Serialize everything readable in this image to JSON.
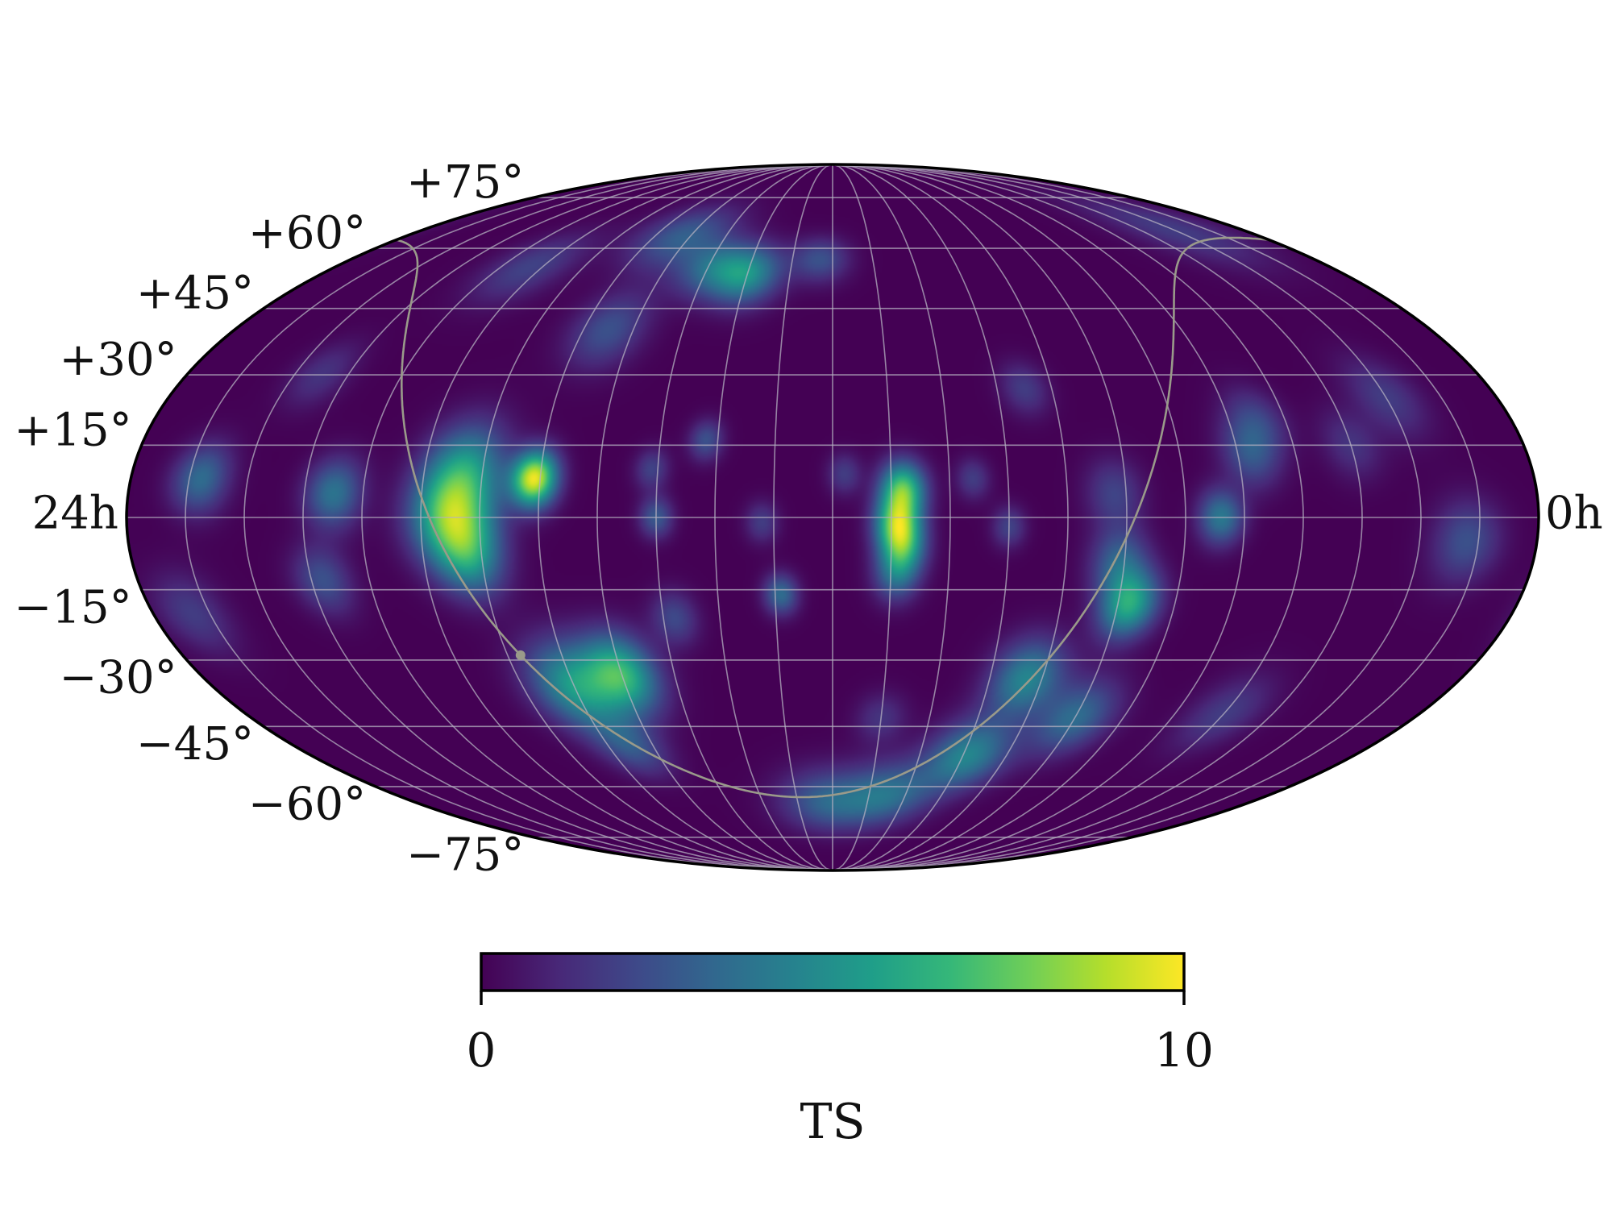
{
  "chart_data": {
    "type": "heatmap",
    "projection": "mollweide",
    "coordinate_system": "equatorial",
    "colormap": "viridis",
    "colors": {
      "colormap_stops": [
        "#440154",
        "#482878",
        "#3e4989",
        "#31688e",
        "#26828e",
        "#1f9e89",
        "#35b779",
        "#6ece58",
        "#b5de2b",
        "#fde725"
      ],
      "graticule": "#b4b0c0",
      "galactic_plane": "#9a9a8a",
      "frame": "#000000"
    },
    "ra_labels": [
      "24h",
      "0h"
    ],
    "dec_labels": [
      {
        "dec": 75,
        "label": "+75°"
      },
      {
        "dec": 60,
        "label": "+60°"
      },
      {
        "dec": 45,
        "label": "+45°"
      },
      {
        "dec": 30,
        "label": "+30°"
      },
      {
        "dec": 15,
        "label": "+15°"
      },
      {
        "dec": -15,
        "label": "−15°"
      },
      {
        "dec": -30,
        "label": "−30°"
      },
      {
        "dec": -45,
        "label": "−45°"
      },
      {
        "dec": -60,
        "label": "−60°"
      },
      {
        "dec": -75,
        "label": "−75°"
      }
    ],
    "grid": {
      "ra_step_deg": 15,
      "dec_step_deg": 15,
      "shown": true
    },
    "galactic_plane_shown": true,
    "galactic_center_marker": true,
    "colorbar": {
      "label": "TS",
      "min": 0,
      "max": 10,
      "ticks": [
        "0",
        "10"
      ],
      "orientation": "horizontal",
      "placement": "bottom"
    },
    "hotspots": [
      {
        "ra_h": 17.1,
        "dec": 8,
        "ts": 9.6,
        "sigma_deg": 4
      },
      {
        "ra_h": 18.5,
        "dec": 0,
        "ts": 6.5,
        "sigma_deg": 7
      },
      {
        "ra_h": 18.3,
        "dec": 10,
        "ts": 4.5,
        "sigma_deg": 7
      },
      {
        "ra_h": 18.2,
        "dec": -8,
        "ts": 4.2,
        "sigma_deg": 6
      },
      {
        "ra_h": 20.5,
        "dec": 5,
        "ts": 3.8,
        "sigma_deg": 5
      },
      {
        "ra_h": 20.8,
        "dec": -13,
        "ts": 2.5,
        "sigma_deg": 5
      },
      {
        "ra_h": 16.0,
        "dec": -33,
        "ts": 6.2,
        "sigma_deg": 6
      },
      {
        "ra_h": 17.0,
        "dec": -36,
        "ts": 5.2,
        "sigma_deg": 7
      },
      {
        "ra_h": 16.5,
        "dec": -50,
        "ts": 2.5,
        "sigma_deg": 5
      },
      {
        "ra_h": 14.0,
        "dec": 53,
        "ts": 4.8,
        "sigma_deg": 5
      },
      {
        "ra_h": 14.9,
        "dec": 55,
        "ts": 3.0,
        "sigma_deg": 5
      },
      {
        "ra_h": 16.2,
        "dec": 63,
        "ts": 3.0,
        "sigma_deg": 6
      },
      {
        "ra_h": 12.3,
        "dec": 57,
        "ts": 2.5,
        "sigma_deg": 4
      },
      {
        "ra_h": 16.5,
        "dec": 40,
        "ts": 2.5,
        "sigma_deg": 6
      },
      {
        "ra_h": 14.2,
        "dec": 16,
        "ts": 2.5,
        "sigma_deg": 3
      },
      {
        "ra_h": 15.1,
        "dec": 10,
        "ts": 2.0,
        "sigma_deg": 3
      },
      {
        "ra_h": 15.0,
        "dec": 0,
        "ts": 2.8,
        "sigma_deg": 3
      },
      {
        "ra_h": 13.2,
        "dec": -1,
        "ts": 1.8,
        "sigma_deg": 3
      },
      {
        "ra_h": 12.9,
        "dec": -16,
        "ts": 3.5,
        "sigma_deg": 3
      },
      {
        "ra_h": 14.8,
        "dec": -21,
        "ts": 2.2,
        "sigma_deg": 4
      },
      {
        "ra_h": 10.8,
        "dec": 6,
        "ts": 6.8,
        "sigma_deg": 4
      },
      {
        "ra_h": 10.9,
        "dec": -1,
        "ts": 6.3,
        "sigma_deg": 4
      },
      {
        "ra_h": 10.8,
        "dec": -6,
        "ts": 5.0,
        "sigma_deg": 4
      },
      {
        "ra_h": 10.9,
        "dec": -12,
        "ts": 3.2,
        "sigma_deg": 4
      },
      {
        "ra_h": 11.8,
        "dec": 9,
        "ts": 1.8,
        "sigma_deg": 3
      },
      {
        "ra_h": 9.6,
        "dec": 8,
        "ts": 1.8,
        "sigma_deg": 3
      },
      {
        "ra_h": 9.0,
        "dec": -2,
        "ts": 2.0,
        "sigma_deg": 3
      },
      {
        "ra_h": 6.8,
        "dec": -18,
        "ts": 6.0,
        "sigma_deg": 5
      },
      {
        "ra_h": 7.1,
        "dec": -9,
        "ts": 3.0,
        "sigma_deg": 5
      },
      {
        "ra_h": 8.3,
        "dec": -34,
        "ts": 4.5,
        "sigma_deg": 6
      },
      {
        "ra_h": 7.0,
        "dec": -43,
        "ts": 3.5,
        "sigma_deg": 6
      },
      {
        "ra_h": 8.9,
        "dec": -52,
        "ts": 4.5,
        "sigma_deg": 6
      },
      {
        "ra_h": 10.5,
        "dec": -62,
        "ts": 3.5,
        "sigma_deg": 6
      },
      {
        "ra_h": 12.2,
        "dec": -64,
        "ts": 3.0,
        "sigma_deg": 6
      },
      {
        "ra_h": 11.0,
        "dec": -43,
        "ts": 1.5,
        "sigma_deg": 4
      },
      {
        "ra_h": 5.4,
        "dec": 0,
        "ts": 4.0,
        "sigma_deg": 4
      },
      {
        "ra_h": 4.8,
        "dec": 13,
        "ts": 2.5,
        "sigma_deg": 5
      },
      {
        "ra_h": 4.5,
        "dec": 20,
        "ts": 2.0,
        "sigma_deg": 5
      },
      {
        "ra_h": 8.5,
        "dec": 27,
        "ts": 1.8,
        "sigma_deg": 4
      },
      {
        "ra_h": 7.2,
        "dec": 5,
        "ts": 2.0,
        "sigma_deg": 5
      },
      {
        "ra_h": 1.2,
        "dec": -5,
        "ts": 2.5,
        "sigma_deg": 6
      },
      {
        "ra_h": 2.0,
        "dec": 25,
        "ts": 1.8,
        "sigma_deg": 6
      },
      {
        "ra_h": 3.0,
        "dec": 15,
        "ts": 1.5,
        "sigma_deg": 5
      },
      {
        "ra_h": 22.8,
        "dec": 8,
        "ts": 3.5,
        "sigma_deg": 5
      },
      {
        "ra_h": 23.3,
        "dec": -20,
        "ts": 1.8,
        "sigma_deg": 6
      },
      {
        "ra_h": 21.5,
        "dec": 30,
        "ts": 1.5,
        "sigma_deg": 5
      },
      {
        "ra_h": 19.3,
        "dec": 55,
        "ts": 2.0,
        "sigma_deg": 6
      },
      {
        "ra_h": 2.0,
        "dec": 65,
        "ts": 1.8,
        "sigma_deg": 7
      },
      {
        "ra_h": 4.0,
        "dec": -42,
        "ts": 1.8,
        "sigma_deg": 6
      }
    ]
  }
}
